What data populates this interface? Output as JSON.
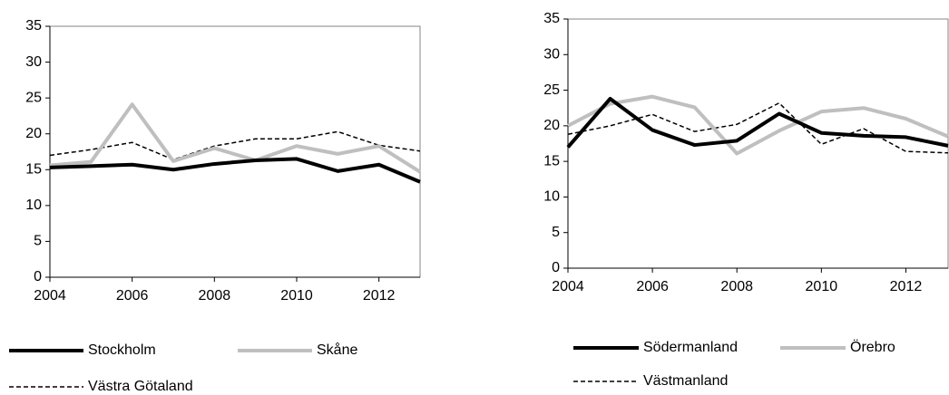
{
  "chart_data": [
    {
      "type": "line",
      "x": [
        2004,
        2005,
        2006,
        2007,
        2008,
        2009,
        2010,
        2011,
        2012,
        2013
      ],
      "xlim": [
        2004,
        2013
      ],
      "xticks": [
        2004,
        2006,
        2008,
        2010,
        2012
      ],
      "ylim": [
        0,
        35
      ],
      "yticks": [
        0,
        5,
        10,
        15,
        20,
        25,
        30,
        35
      ],
      "series": [
        {
          "name": "Stockholm",
          "color": "#000000",
          "linestyle": "solid",
          "values": [
            15.3,
            15.5,
            15.7,
            15.0,
            15.8,
            16.3,
            16.5,
            14.8,
            15.7,
            13.3
          ]
        },
        {
          "name": "Skåne",
          "color": "#bfbfbf",
          "linestyle": "solid",
          "values": [
            15.6,
            16.1,
            24.1,
            16.2,
            18.0,
            16.3,
            18.3,
            17.2,
            18.3,
            14.7
          ]
        },
        {
          "name": "Västra Götaland",
          "color": "#000000",
          "linestyle": "dashed",
          "values": [
            17.0,
            17.8,
            18.8,
            16.4,
            18.3,
            19.3,
            19.3,
            20.3,
            18.4,
            17.6
          ]
        }
      ]
    },
    {
      "type": "line",
      "x": [
        2004,
        2005,
        2006,
        2007,
        2008,
        2009,
        2010,
        2011,
        2012,
        2013
      ],
      "xlim": [
        2004,
        2013
      ],
      "xticks": [
        2004,
        2006,
        2008,
        2010,
        2012
      ],
      "ylim": [
        0,
        35
      ],
      "yticks": [
        0,
        5,
        10,
        15,
        20,
        25,
        30,
        35
      ],
      "series": [
        {
          "name": "Södermanland",
          "color": "#000000",
          "linestyle": "solid",
          "values": [
            17.0,
            23.8,
            19.4,
            17.3,
            17.9,
            21.7,
            19.0,
            18.6,
            18.4,
            17.2
          ]
        },
        {
          "name": "Örebro",
          "color": "#bfbfbf",
          "linestyle": "solid",
          "values": [
            20.0,
            23.1,
            24.1,
            22.6,
            16.1,
            19.3,
            22.0,
            22.5,
            21.0,
            18.5
          ]
        },
        {
          "name": "Västmanland",
          "color": "#000000",
          "linestyle": "dashed",
          "values": [
            18.8,
            20.0,
            21.6,
            19.2,
            20.2,
            23.2,
            17.4,
            19.6,
            16.4,
            16.2
          ]
        }
      ]
    }
  ]
}
